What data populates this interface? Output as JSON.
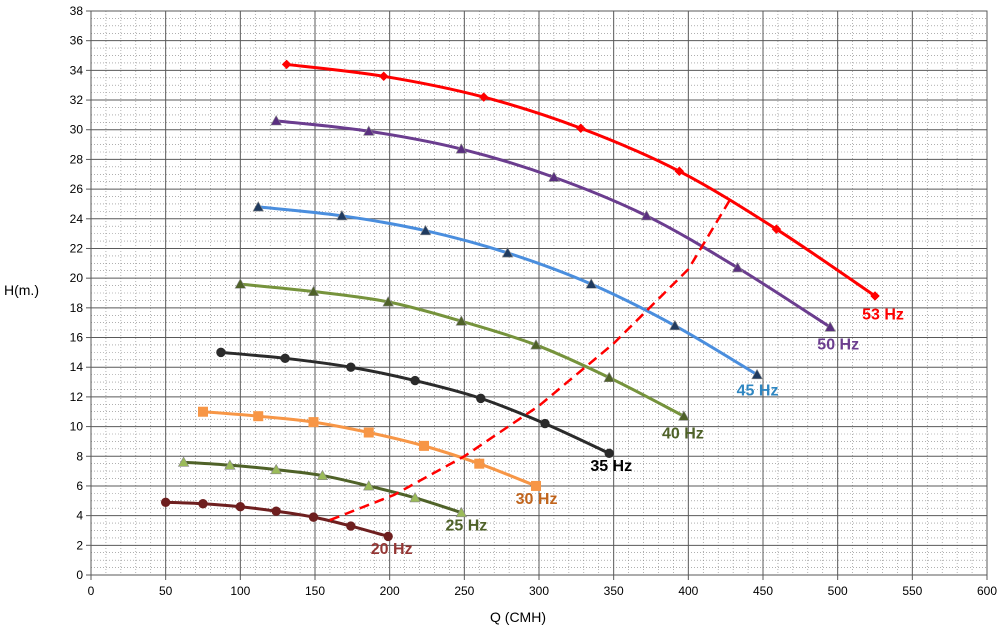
{
  "chart_data": {
    "type": "line",
    "xlabel": "Q (CMH)",
    "ylabel": "H(m.)",
    "xlim": [
      0,
      600
    ],
    "ylim": [
      0,
      38
    ],
    "x_major_step": 50,
    "y_major_step": 2,
    "grid": true,
    "x_ticks": [
      "0",
      "50",
      "100",
      "150",
      "200",
      "250",
      "300",
      "350",
      "400",
      "450",
      "500",
      "550",
      "600"
    ],
    "y_ticks": [
      "0",
      "2",
      "4",
      "6",
      "8",
      "10",
      "12",
      "14",
      "16",
      "18",
      "20",
      "22",
      "24",
      "26",
      "28",
      "30",
      "32",
      "34",
      "36",
      "38"
    ],
    "series": [
      {
        "name": "53 Hz",
        "color": "#ff0000",
        "label_color": "#ff0000",
        "marker": "diamond",
        "marker_color": "#ff0000",
        "points": [
          [
            131,
            34.4
          ],
          [
            196,
            33.6
          ],
          [
            263,
            32.2
          ],
          [
            328,
            30.1
          ],
          [
            394,
            27.2
          ],
          [
            459,
            23.3
          ],
          [
            525,
            18.8
          ]
        ],
        "label_at": [
          525,
          17.2
        ]
      },
      {
        "name": "50 Hz",
        "color": "#6b3d8f",
        "label_color": "#6b3d8f",
        "marker": "triangle",
        "marker_color": "#5a2f80",
        "points": [
          [
            124,
            30.6
          ],
          [
            186,
            29.9
          ],
          [
            248,
            28.7
          ],
          [
            310,
            26.8
          ],
          [
            372,
            24.2
          ],
          [
            433,
            20.7
          ],
          [
            495,
            16.7
          ]
        ],
        "label_at": [
          495,
          15.2
        ]
      },
      {
        "name": "45 Hz",
        "color": "#4a8ede",
        "label_color": "#2e86c1",
        "marker": "triangle",
        "marker_color": "#1f3a5f",
        "points": [
          [
            112,
            24.8
          ],
          [
            168,
            24.2
          ],
          [
            224,
            23.2
          ],
          [
            279,
            21.7
          ],
          [
            335,
            19.6
          ],
          [
            391,
            16.8
          ],
          [
            446,
            13.5
          ]
        ],
        "label_at": [
          441,
          12.1
        ]
      },
      {
        "name": "40 Hz",
        "color": "#76933c",
        "label_color": "#4f6228",
        "marker": "triangle",
        "marker_color": "#4f6228",
        "points": [
          [
            100,
            19.6
          ],
          [
            149,
            19.1
          ],
          [
            199,
            18.4
          ],
          [
            248,
            17.1
          ],
          [
            298,
            15.5
          ],
          [
            347,
            13.3
          ],
          [
            397,
            10.7
          ]
        ],
        "label_at": [
          391,
          9.2
        ]
      },
      {
        "name": "35 Hz",
        "color": "#2b2b2b",
        "label_color": "#000000",
        "marker": "circle",
        "marker_color": "#2b2b2b",
        "points": [
          [
            87,
            15.0
          ],
          [
            130,
            14.6
          ],
          [
            174,
            14.0
          ],
          [
            217,
            13.1
          ],
          [
            261,
            11.9
          ],
          [
            304,
            10.2
          ],
          [
            347,
            8.2
          ]
        ],
        "label_at": [
          343,
          7.0
        ]
      },
      {
        "name": "30 Hz",
        "color": "#f79646",
        "label_color": "#c0641c",
        "marker": "square",
        "marker_color": "#f79646",
        "points": [
          [
            75,
            11.0
          ],
          [
            112,
            10.7
          ],
          [
            149,
            10.3
          ],
          [
            186,
            9.6
          ],
          [
            223,
            8.7
          ],
          [
            260,
            7.5
          ],
          [
            298,
            6.0
          ]
        ],
        "label_at": [
          293,
          4.8
        ]
      },
      {
        "name": "25 Hz",
        "color": "#4f6228",
        "label_color": "#4f6228",
        "marker": "triangle",
        "marker_color": "#9bbb59",
        "points": [
          [
            62,
            7.6
          ],
          [
            93,
            7.4
          ],
          [
            124,
            7.1
          ],
          [
            155,
            6.7
          ],
          [
            186,
            6.0
          ],
          [
            217,
            5.2
          ],
          [
            248,
            4.2
          ]
        ],
        "label_at": [
          246,
          3.0
        ]
      },
      {
        "name": "20 Hz",
        "color": "#6e1f1f",
        "label_color": "#943634",
        "marker": "circle",
        "marker_color": "#6e1f1f",
        "points": [
          [
            50,
            4.9
          ],
          [
            75,
            4.8
          ],
          [
            100,
            4.6
          ],
          [
            124,
            4.3
          ],
          [
            149,
            3.9
          ],
          [
            174,
            3.3
          ],
          [
            199,
            2.6
          ]
        ],
        "label_at": [
          196,
          1.4
        ]
      }
    ],
    "system_curve": {
      "color": "#ff0000",
      "style": "dashed",
      "points": [
        [
          160,
          3.7
        ],
        [
          203,
          5.4
        ],
        [
          250,
          8.0
        ],
        [
          300,
          11.4
        ],
        [
          350,
          15.6
        ],
        [
          400,
          20.6
        ],
        [
          428,
          25.3
        ]
      ]
    }
  }
}
